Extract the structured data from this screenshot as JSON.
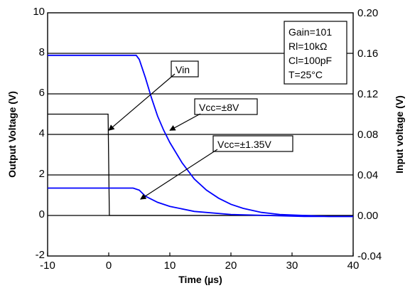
{
  "chart_data": {
    "type": "line",
    "xlabel": "Time (µs)",
    "ylabel_left": "Output Voltage (V)",
    "ylabel_right": "Input voltage (V)",
    "xlim": [
      -10,
      40
    ],
    "ylim_left": [
      -2,
      10
    ],
    "ylim_right": [
      -0.04,
      0.2
    ],
    "x_ticks": [
      "-10",
      "0",
      "10",
      "20",
      "30",
      "40"
    ],
    "y_left_ticks": [
      "-2",
      "0",
      "2",
      "4",
      "6",
      "8",
      "10"
    ],
    "y_right_ticks": [
      "-0.04",
      "0.00",
      "0.04",
      "0.08",
      "0.12",
      "0.16",
      "0.20"
    ],
    "grid": "horizontal",
    "legend_box": [
      "Gain=101",
      "Rl=10kΩ",
      "Cl=100pF",
      "T=25°C"
    ],
    "legend_position": "top-right",
    "series": [
      {
        "name": "Vin",
        "color": "#000000",
        "axis": "right",
        "x": [
          -10,
          -0.1,
          0,
          0.1,
          40
        ],
        "y": [
          0.1,
          0.1,
          0.05,
          0.0,
          0.0
        ]
      },
      {
        "name": "Vcc=±8V",
        "color": "#0000ff",
        "axis": "left",
        "x": [
          -10,
          4.5,
          5,
          6,
          7,
          8,
          9,
          10,
          12,
          14,
          16,
          18,
          20,
          22,
          25,
          28,
          32,
          36,
          40
        ],
        "y": [
          7.9,
          7.9,
          7.7,
          6.8,
          5.8,
          4.9,
          4.2,
          3.6,
          2.6,
          1.8,
          1.25,
          0.85,
          0.55,
          0.35,
          0.15,
          0.05,
          0.0,
          -0.05,
          -0.05
        ]
      },
      {
        "name": "Vcc=±1.35V",
        "color": "#0000ff",
        "axis": "left",
        "x": [
          -10,
          4,
          5,
          6,
          8,
          10,
          14,
          20,
          26,
          32,
          40
        ],
        "y": [
          1.35,
          1.35,
          1.25,
          0.95,
          0.65,
          0.45,
          0.2,
          0.05,
          0.0,
          -0.05,
          -0.05
        ]
      }
    ],
    "annotations": [
      {
        "text": "Vin",
        "target_x": 0,
        "target_y": 4.2
      },
      {
        "text": "Vcc=±8V",
        "target_x": 10,
        "target_y": 4.2
      },
      {
        "text": "Vcc=±1.35V",
        "target_x": 5.2,
        "target_y": 0.8
      }
    ]
  }
}
